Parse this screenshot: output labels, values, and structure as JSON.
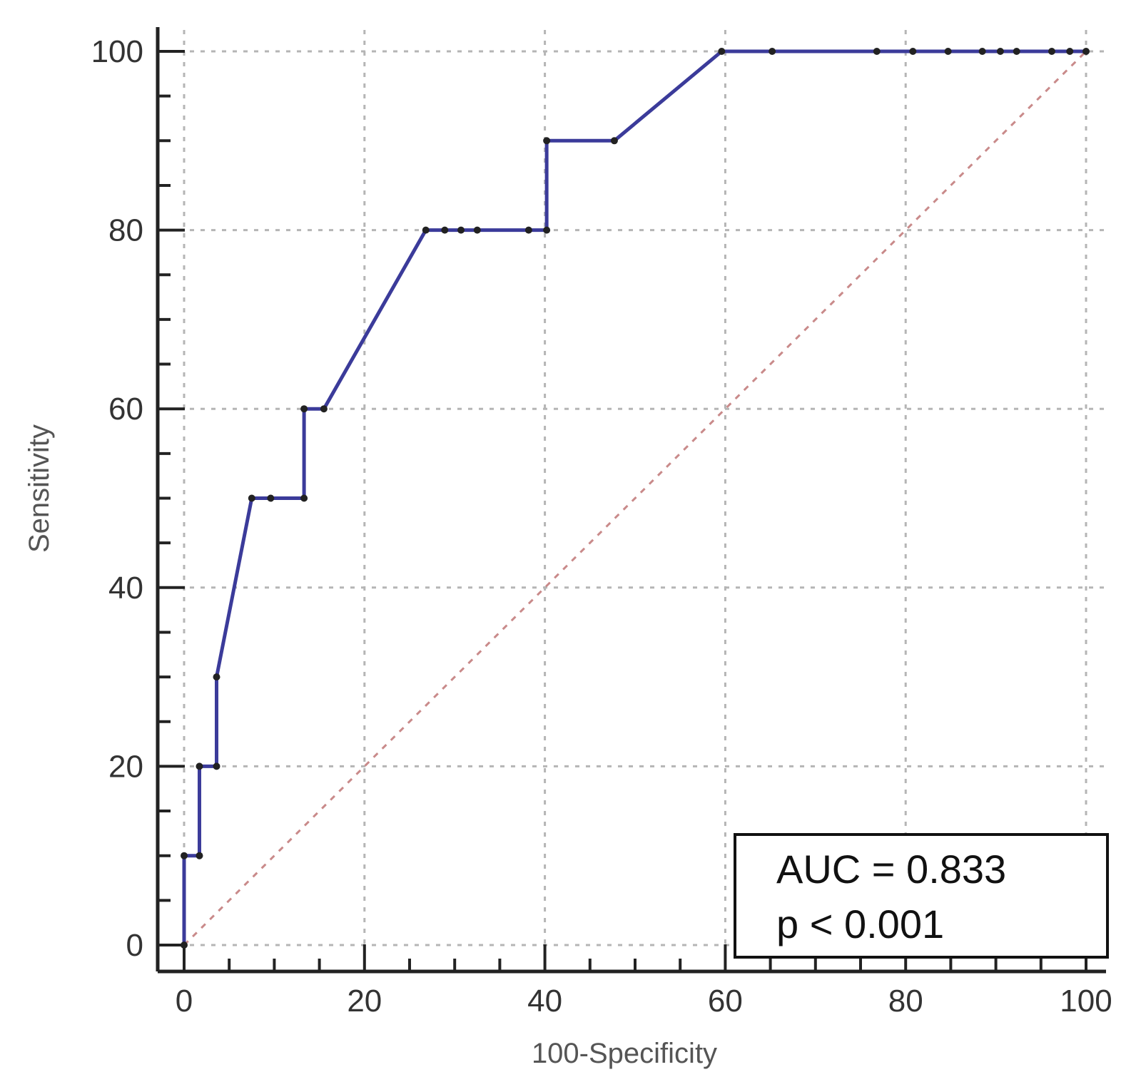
{
  "chart_data": {
    "type": "line",
    "xlabel": "100-Specificity",
    "ylabel": "Sensitivity",
    "xlim": [
      0,
      100
    ],
    "ylim": [
      0,
      100
    ],
    "x_ticks": [
      "0",
      "20",
      "40",
      "60",
      "80",
      "100"
    ],
    "y_ticks": [
      "0",
      "20",
      "40",
      "60",
      "80",
      "100"
    ],
    "grid": true,
    "series": [
      {
        "color": "#3b3b9a",
        "x": [
          0,
          0,
          1.7,
          1.7,
          3.6,
          3.6,
          7.5,
          9.6,
          13.3,
          13.3,
          15.5,
          26.8,
          28.9,
          30.7,
          32.5,
          38.2,
          40.2,
          40.2,
          47.7,
          59.6,
          65.2,
          76.8,
          80.8,
          84.7,
          88.5,
          90.5,
          92.3,
          96.2,
          98.2,
          100
        ],
        "y": [
          0,
          10,
          10,
          20,
          20,
          30,
          50,
          50,
          50,
          60,
          60,
          80,
          80,
          80,
          80,
          80,
          80,
          90,
          90,
          100,
          100,
          100,
          100,
          100,
          100,
          100,
          100,
          100,
          100,
          100
        ]
      },
      {
        "style": "dashed-diagonal",
        "color": "#c98a8a",
        "x": [
          0,
          100
        ],
        "y": [
          0,
          100
        ]
      }
    ],
    "annotation": {
      "auc": "AUC = 0.833",
      "p": "p < 0.001"
    }
  }
}
